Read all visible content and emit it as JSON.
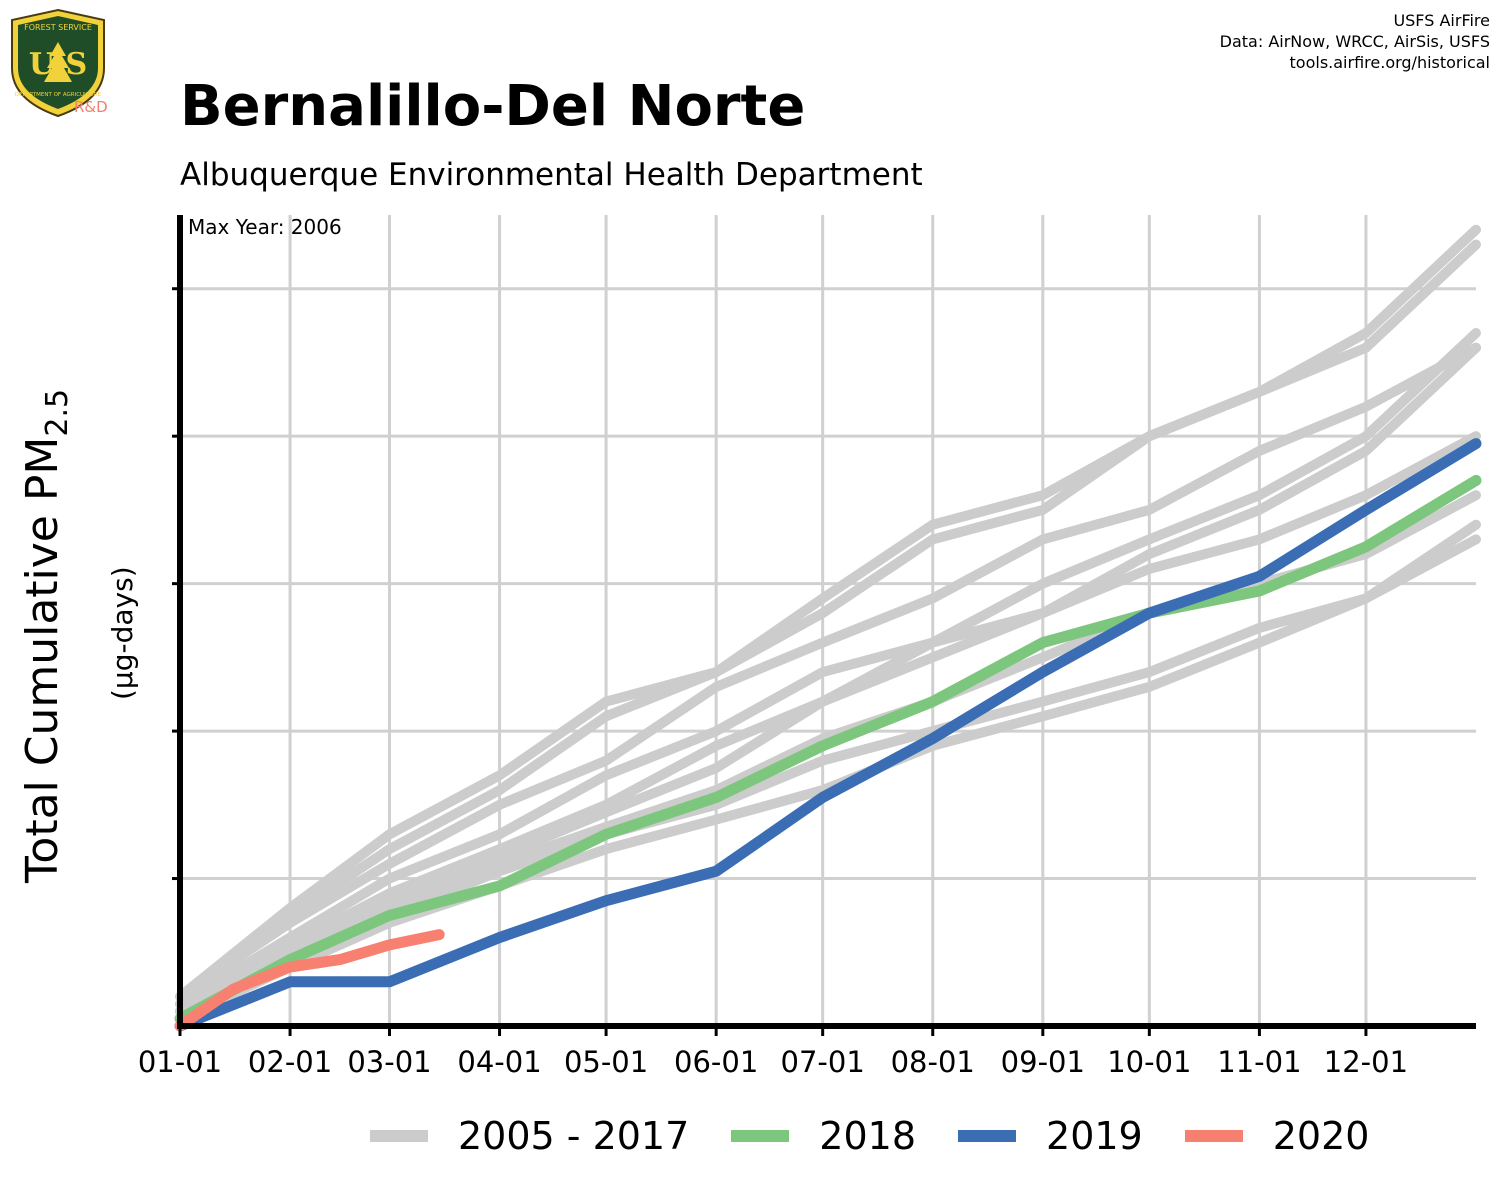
{
  "logo": {
    "top_text": "FOREST SERVICE",
    "letters": "U S",
    "bottom_text": "DEPARTMENT OF AGRICULTURE",
    "rd": "R&D"
  },
  "credits": {
    "line1": "USFS AirFire",
    "line2": "Data: AirNow, WRCC, AirSis, USFS",
    "line3": "tools.airfire.org/historical"
  },
  "title": "Bernalillo-Del Norte",
  "subtitle": "Albuquerque Environmental Health Department",
  "ylabel": {
    "main": "Total Cumulative PM",
    "sub": "2.5",
    "unit": "(µg-days)"
  },
  "annotation": "Max Year: 2006",
  "colors": {
    "historical": "#cccccc",
    "y2018": "#7dc67d",
    "y2019": "#3a6db4",
    "y2020": "#f88070",
    "grid": "#d0d0d0"
  },
  "chart_data": {
    "type": "line",
    "x_tick_labels": [
      "01-01",
      "02-01",
      "03-01",
      "04-01",
      "05-01",
      "06-01",
      "07-01",
      "08-01",
      "09-01",
      "10-01",
      "11-01",
      "12-01"
    ],
    "x_tick_days": [
      1,
      32,
      60,
      91,
      121,
      152,
      182,
      213,
      244,
      274,
      305,
      335
    ],
    "xlim": [
      1,
      366
    ],
    "ylim": [
      0,
      5.5
    ],
    "y_gridlines": [
      1,
      2,
      3,
      4,
      5
    ],
    "y_tick_labels": [],
    "grid": true,
    "legend_position": "bottom",
    "legend": [
      "2005 - 2017",
      "2018",
      "2019",
      "2020"
    ],
    "series": [
      {
        "name": "2005 - 2017",
        "group": "historical",
        "x": [
          1,
          32,
          60,
          91,
          121,
          152,
          182,
          213,
          244,
          274,
          305,
          335,
          366
        ],
        "values": [
          0.2,
          0.8,
          1.3,
          1.7,
          2.2,
          2.4,
          2.9,
          3.4,
          3.6,
          4.0,
          4.3,
          4.6,
          5.3
        ]
      },
      {
        "name": "2005 - 2017",
        "group": "historical",
        "x": [
          1,
          32,
          60,
          91,
          121,
          152,
          182,
          213,
          244,
          274,
          305,
          335,
          366
        ],
        "values": [
          0.15,
          0.75,
          1.2,
          1.6,
          2.1,
          2.4,
          2.8,
          3.3,
          3.5,
          4.0,
          4.3,
          4.7,
          5.4
        ]
      },
      {
        "name": "2005 - 2017",
        "group": "historical",
        "x": [
          1,
          32,
          60,
          91,
          121,
          152,
          182,
          213,
          244,
          274,
          305,
          335,
          366
        ],
        "values": [
          0.2,
          0.7,
          1.1,
          1.5,
          1.8,
          2.3,
          2.6,
          2.9,
          3.3,
          3.5,
          3.9,
          4.2,
          4.6
        ]
      },
      {
        "name": "2005 - 2017",
        "group": "historical",
        "x": [
          1,
          32,
          60,
          91,
          121,
          152,
          182,
          213,
          244,
          274,
          305,
          335,
          366
        ],
        "values": [
          0.15,
          0.6,
          1.0,
          1.3,
          1.7,
          2.0,
          2.4,
          2.6,
          3.0,
          3.3,
          3.6,
          4.0,
          4.7
        ]
      },
      {
        "name": "2005 - 2017",
        "group": "historical",
        "x": [
          1,
          32,
          60,
          91,
          121,
          152,
          182,
          213,
          244,
          274,
          305,
          335,
          366
        ],
        "values": [
          0.1,
          0.55,
          0.9,
          1.2,
          1.5,
          1.9,
          2.2,
          2.6,
          2.8,
          3.2,
          3.5,
          3.9,
          4.6
        ]
      },
      {
        "name": "2005 - 2017",
        "group": "historical",
        "x": [
          1,
          32,
          60,
          91,
          121,
          152,
          182,
          213,
          244,
          274,
          305,
          335,
          366
        ],
        "values": [
          0.1,
          0.5,
          0.85,
          1.15,
          1.45,
          1.75,
          2.2,
          2.5,
          2.8,
          3.1,
          3.3,
          3.6,
          4.0
        ]
      },
      {
        "name": "2005 - 2017",
        "group": "historical",
        "x": [
          1,
          32,
          60,
          91,
          121,
          152,
          182,
          213,
          244,
          274,
          305,
          335,
          366
        ],
        "values": [
          0.1,
          0.5,
          0.8,
          1.1,
          1.35,
          1.6,
          1.95,
          2.2,
          2.5,
          2.8,
          3.0,
          3.2,
          3.6
        ]
      },
      {
        "name": "2005 - 2017",
        "group": "historical",
        "x": [
          1,
          32,
          60,
          91,
          121,
          152,
          182,
          213,
          244,
          274,
          305,
          335,
          366
        ],
        "values": [
          0.1,
          0.45,
          0.75,
          1.05,
          1.3,
          1.5,
          1.8,
          2.0,
          2.2,
          2.4,
          2.7,
          2.9,
          3.3
        ]
      },
      {
        "name": "2005 - 2017",
        "group": "historical",
        "x": [
          1,
          32,
          60,
          91,
          121,
          152,
          182,
          213,
          244,
          274,
          305,
          335,
          366
        ],
        "values": [
          0.05,
          0.4,
          0.7,
          0.95,
          1.2,
          1.4,
          1.6,
          1.9,
          2.1,
          2.3,
          2.6,
          2.9,
          3.4
        ]
      },
      {
        "name": "2018",
        "group": "y2018",
        "x": [
          1,
          32,
          60,
          91,
          121,
          152,
          182,
          213,
          244,
          274,
          305,
          335,
          366
        ],
        "values": [
          0.05,
          0.45,
          0.75,
          0.95,
          1.3,
          1.55,
          1.9,
          2.2,
          2.6,
          2.8,
          2.95,
          3.25,
          3.7
        ]
      },
      {
        "name": "2019",
        "group": "y2019",
        "x": [
          1,
          32,
          60,
          91,
          121,
          152,
          182,
          213,
          244,
          274,
          305,
          335,
          366
        ],
        "values": [
          0.0,
          0.3,
          0.3,
          0.6,
          0.85,
          1.05,
          1.55,
          1.95,
          2.4,
          2.8,
          3.05,
          3.5,
          3.95
        ]
      },
      {
        "name": "2020",
        "group": "y2020",
        "x": [
          1,
          16,
          32,
          46,
          60,
          74
        ],
        "values": [
          0.0,
          0.25,
          0.4,
          0.45,
          0.55,
          0.62
        ]
      }
    ]
  },
  "legend_items": [
    {
      "label": "2005 - 2017",
      "color": "#cccccc"
    },
    {
      "label": "2018",
      "color": "#7dc67d"
    },
    {
      "label": "2019",
      "color": "#3a6db4"
    },
    {
      "label": "2020",
      "color": "#f88070"
    }
  ]
}
